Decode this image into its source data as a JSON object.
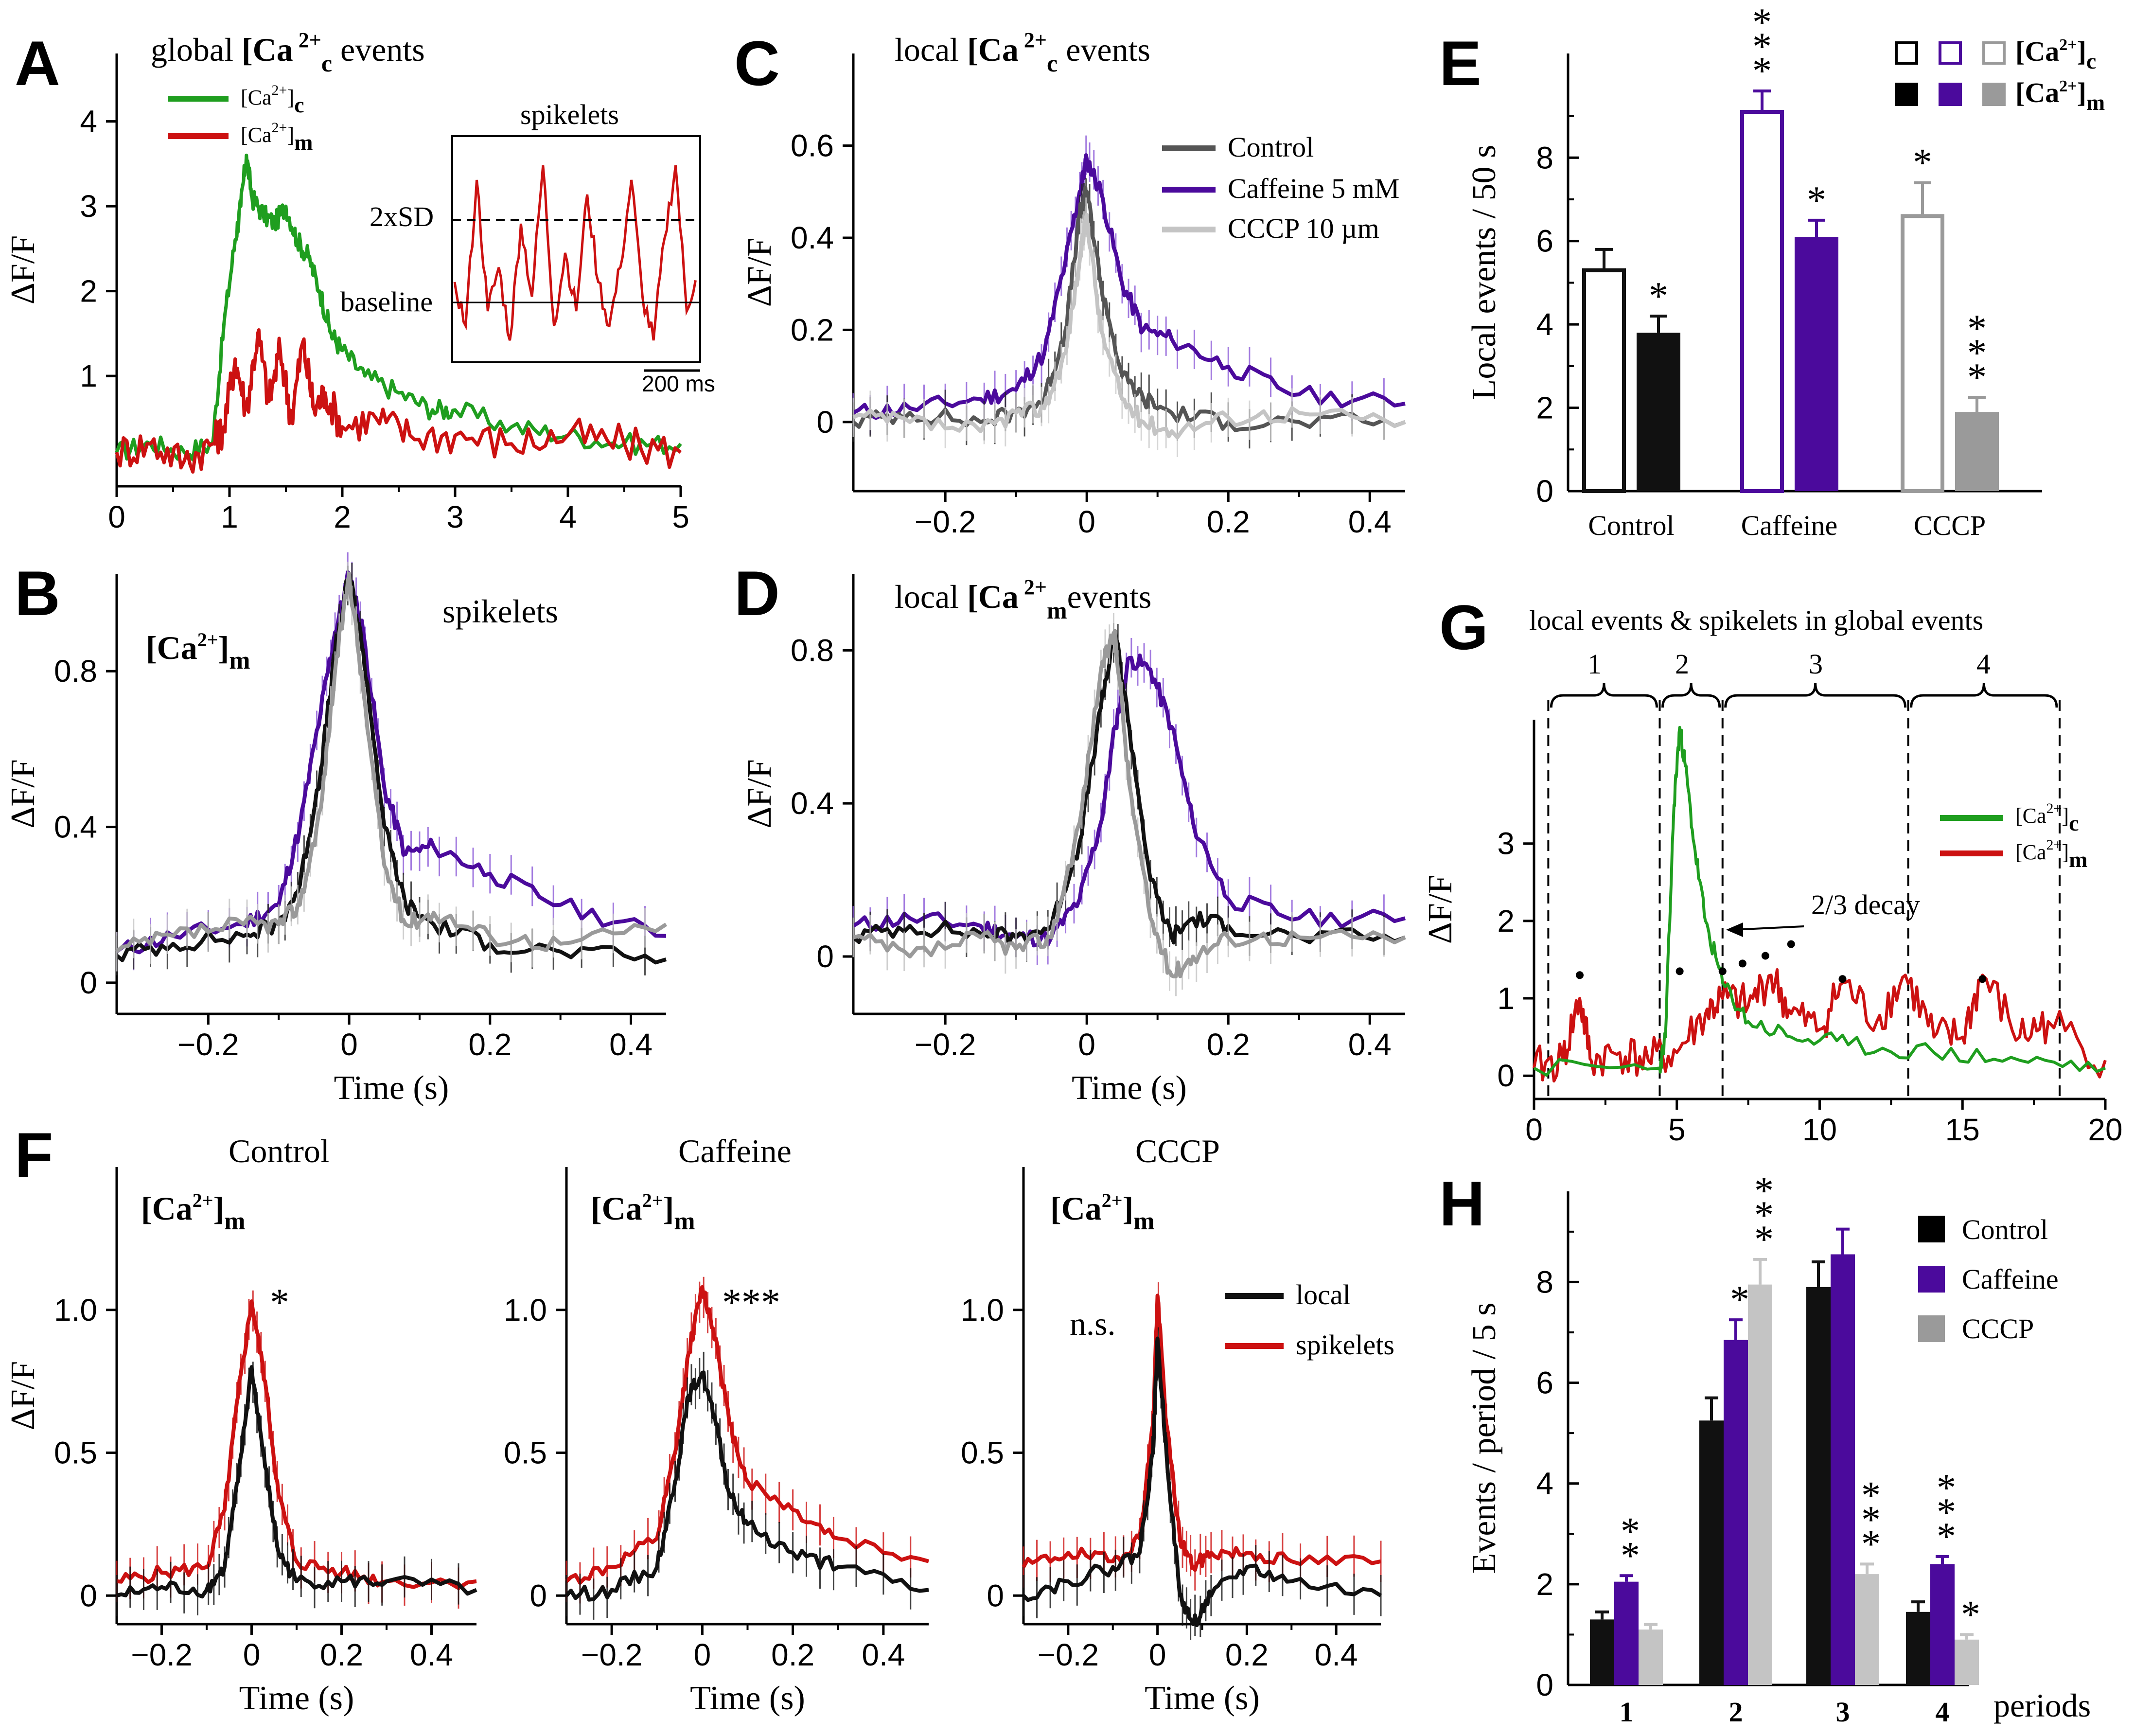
{
  "colors": {
    "green": "#1f9e1f",
    "red": "#cc1111",
    "purple": "#4b0a9c",
    "black": "#111111",
    "gray": "#9a9a9a",
    "lightgray": "#c4c4c4",
    "darkgray": "#555555",
    "purple_err": "#8b5ad8"
  },
  "panels": {
    "A": {
      "letter": "A",
      "title_pre": "global ",
      "title_ca": "[Ca",
      "title_sup": " 2+",
      "title_sub": "c",
      "title_post": " events",
      "legend": [
        {
          "label": "[Ca",
          "sup": "2+",
          "close": "]",
          "sub": "c",
          "color": "green"
        },
        {
          "label": "[Ca",
          "sup": "2+",
          "close": "]",
          "sub": "m",
          "color": "red"
        }
      ],
      "inset": {
        "title": "spikelets",
        "sd_label": "2xSD",
        "baseline_label": "baseline",
        "scalebar": "200 ms"
      }
    },
    "B": {
      "letter": "B",
      "title": "spikelets",
      "tag_pre": "[Ca",
      "tag_sup": "2+",
      "tag_close": "]",
      "tag_sub": "m"
    },
    "C": {
      "letter": "C",
      "title_pre": "local ",
      "title_ca": "[Ca",
      "title_sup": " 2+",
      "title_sub": "c",
      "title_post": " events",
      "legend": [
        {
          "label": "Control",
          "color": "darkgray"
        },
        {
          "label": "Caffeine 5 mM",
          "color": "purple"
        },
        {
          "label": "CCCP 10 µm",
          "color": "lightgray"
        }
      ]
    },
    "D": {
      "letter": "D",
      "title_pre": "local ",
      "title_ca": "[Ca",
      "title_sup": " 2+",
      "title_sub": "m",
      "title_post": "events"
    },
    "E": {
      "letter": "E",
      "legend": [
        {
          "label": "[Ca",
          "sup": "2+",
          "close": "]",
          "sub": "c"
        },
        {
          "label": "[Ca",
          "sup": "2+",
          "close": "]",
          "sub": "m"
        }
      ]
    },
    "F": {
      "letter": "F",
      "subtitles": [
        "Control",
        "Caffeine",
        "CCCP"
      ],
      "tag_pre": "[Ca",
      "tag_sup": "2+",
      "tag_close": "]",
      "tag_sub": "m",
      "sig": [
        "*",
        "***",
        "n.s."
      ],
      "legend": [
        {
          "label": "local",
          "color": "black"
        },
        {
          "label": "spikelets",
          "color": "red"
        }
      ]
    },
    "G": {
      "letter": "G",
      "title": "local events & spikelets in global events",
      "periods": [
        "1",
        "2",
        "3",
        "4"
      ],
      "annotation": "2/3 decay",
      "legend": [
        {
          "label": "[Ca",
          "sup": "2+",
          "close": "]",
          "sub": "c",
          "color": "green"
        },
        {
          "label": "[Ca",
          "sup": "2+",
          "close": "]",
          "sub": "m",
          "color": "red"
        }
      ]
    },
    "H": {
      "letter": "H",
      "xlabel_extra": "periods",
      "legend": [
        {
          "label": "Control",
          "color": "black"
        },
        {
          "label": "Caffeine",
          "color": "purple"
        },
        {
          "label": "CCCP",
          "color": "lightgray"
        }
      ]
    }
  },
  "chart_data": [
    {
      "id": "A",
      "type": "line",
      "title": "global [Ca 2+]c events",
      "xlabel": "",
      "ylabel": "ΔF/F",
      "xlim": [
        0,
        5
      ],
      "ylim": [
        -0.3,
        4.8
      ],
      "xticks": [
        "0",
        "1",
        "2",
        "3",
        "4",
        "5"
      ],
      "yticks": [
        "1",
        "2",
        "3",
        "4"
      ],
      "series": [
        {
          "name": "[Ca2+]c",
          "color": "green",
          "x": [
            0,
            0.3,
            0.6,
            0.85,
            0.95,
            1.05,
            1.1,
            1.15,
            1.2,
            1.3,
            1.4,
            1.5,
            1.6,
            1.7,
            1.8,
            1.9,
            2.0,
            2.2,
            2.5,
            2.8,
            3.0,
            3.5,
            4.0,
            4.5,
            5.0
          ],
          "y": [
            0.1,
            0.2,
            0.1,
            0.2,
            1.6,
            2.6,
            3.0,
            3.6,
            3.1,
            2.9,
            2.8,
            3.0,
            2.6,
            2.4,
            2.0,
            1.5,
            1.3,
            1.0,
            0.8,
            0.6,
            0.6,
            0.4,
            0.3,
            0.2,
            0.2
          ]
        },
        {
          "name": "[Ca2+]m",
          "color": "red",
          "x": [
            0,
            0.3,
            0.6,
            0.85,
            0.95,
            1.05,
            1.15,
            1.25,
            1.35,
            1.45,
            1.55,
            1.65,
            1.75,
            1.85,
            2.0,
            2.3,
            2.6,
            3.0,
            3.5,
            4.0,
            4.5,
            5.0
          ],
          "y": [
            0.1,
            0.2,
            0.0,
            0.2,
            0.4,
            1.2,
            0.6,
            1.5,
            0.7,
            1.3,
            0.5,
            1.4,
            0.6,
            0.8,
            0.4,
            0.5,
            0.3,
            0.3,
            0.2,
            0.3,
            0.2,
            0.1
          ]
        }
      ],
      "inset": {
        "series": [
          {
            "name": "spikelets",
            "color": "red",
            "y": [
              0.5,
              0.2,
              1.2,
              0.3,
              0.6,
              0.1,
              0.9,
              0.4,
              1.3,
              0.2,
              0.7,
              0.3,
              1.1,
              0.5,
              0.2,
              0.6,
              1.2,
              0.4,
              0.1,
              0.8,
              1.3,
              0.3,
              0.6
            ]
          }
        ]
      }
    },
    {
      "id": "B",
      "type": "line",
      "xlabel": "Time (s)",
      "ylabel": "ΔF/F",
      "xlim": [
        -0.33,
        0.45
      ],
      "ylim": [
        -0.08,
        1.05
      ],
      "xticks": [
        "-0.2",
        "0",
        "0.2",
        "0.4"
      ],
      "yticks": [
        "0",
        "0.4",
        "0.8"
      ],
      "x": [
        -0.33,
        -0.25,
        -0.15,
        -0.1,
        -0.07,
        -0.04,
        -0.02,
        0,
        0.02,
        0.05,
        0.08,
        0.12,
        0.2,
        0.3,
        0.45
      ],
      "series": [
        {
          "name": "Caffeine",
          "color": "purple",
          "y": [
            0.08,
            0.12,
            0.15,
            0.2,
            0.4,
            0.7,
            0.9,
            1.05,
            0.9,
            0.5,
            0.33,
            0.35,
            0.28,
            0.2,
            0.12
          ]
        },
        {
          "name": "Control",
          "color": "black",
          "y": [
            0.07,
            0.1,
            0.12,
            0.15,
            0.25,
            0.55,
            0.85,
            1.05,
            0.85,
            0.4,
            0.2,
            0.15,
            0.1,
            0.08,
            0.06
          ]
        },
        {
          "name": "CCCP",
          "color": "gray",
          "y": [
            0.08,
            0.12,
            0.15,
            0.15,
            0.2,
            0.45,
            0.8,
            1.05,
            0.75,
            0.3,
            0.15,
            0.18,
            0.12,
            0.1,
            0.15
          ]
        }
      ]
    },
    {
      "id": "C",
      "type": "line",
      "title": "local [Ca 2+]c events",
      "xlabel": "",
      "ylabel": "ΔF/F",
      "xlim": [
        -0.33,
        0.45
      ],
      "ylim": [
        -0.15,
        0.8
      ],
      "xticks": [
        "-0.2",
        "0",
        "0.2",
        "0.4"
      ],
      "yticks": [
        "0",
        "0.2",
        "0.4",
        "0.6"
      ],
      "x": [
        -0.33,
        -0.25,
        -0.15,
        -0.1,
        -0.06,
        -0.03,
        -0.01,
        0,
        0.02,
        0.05,
        0.08,
        0.12,
        0.2,
        0.3,
        0.45
      ],
      "series": [
        {
          "name": "Caffeine 5 mM",
          "color": "purple",
          "y": [
            0.02,
            0.03,
            0.05,
            0.07,
            0.15,
            0.35,
            0.5,
            0.57,
            0.5,
            0.3,
            0.2,
            0.18,
            0.12,
            0.06,
            0.04
          ]
        },
        {
          "name": "Control",
          "color": "darkgray",
          "y": [
            0.0,
            0.02,
            0.0,
            0.02,
            0.05,
            0.2,
            0.45,
            0.5,
            0.3,
            0.1,
            0.05,
            0.02,
            0.0,
            0.0,
            0.0
          ]
        },
        {
          "name": "CCCP 10 µm",
          "color": "lightgray",
          "y": [
            0.01,
            0.0,
            -0.02,
            0.02,
            0.03,
            0.15,
            0.35,
            0.45,
            0.2,
            0.05,
            0.0,
            -0.02,
            0.01,
            0.02,
            0.0
          ]
        }
      ]
    },
    {
      "id": "D",
      "type": "line",
      "title": "local [Ca 2+]m events",
      "xlabel": "Time (s)",
      "ylabel": "ΔF/F",
      "xlim": [
        -0.33,
        0.45
      ],
      "ylim": [
        -0.15,
        1.0
      ],
      "xticks": [
        "-0.2",
        "0",
        "0.2",
        "0.4"
      ],
      "yticks": [
        "0",
        "0.4",
        "0.8"
      ],
      "x": [
        -0.33,
        -0.25,
        -0.15,
        -0.1,
        -0.05,
        -0.01,
        0.02,
        0.04,
        0.06,
        0.09,
        0.12,
        0.15,
        0.2,
        0.3,
        0.45
      ],
      "series": [
        {
          "name": "Caffeine",
          "color": "purple",
          "y": [
            0.08,
            0.1,
            0.08,
            0.05,
            0.05,
            0.15,
            0.35,
            0.6,
            0.78,
            0.75,
            0.6,
            0.35,
            0.15,
            0.1,
            0.1
          ]
        },
        {
          "name": "Control",
          "color": "black",
          "y": [
            0.05,
            0.08,
            0.06,
            0.05,
            0.08,
            0.3,
            0.65,
            0.85,
            0.6,
            0.2,
            0.05,
            0.1,
            0.08,
            0.05,
            0.05
          ]
        },
        {
          "name": "CCCP",
          "color": "gray",
          "y": [
            0.05,
            0.0,
            0.05,
            0.02,
            0.05,
            0.35,
            0.75,
            0.85,
            0.45,
            0.1,
            -0.05,
            0.0,
            0.05,
            0.05,
            0.05
          ]
        }
      ]
    },
    {
      "id": "E",
      "type": "bar",
      "ylabel": "Local events / 50 s",
      "ylim": [
        0,
        10.5
      ],
      "yticks": [
        "0",
        "2",
        "4",
        "6",
        "8"
      ],
      "categories": [
        "Control",
        "Caffeine",
        "CCCP"
      ],
      "series": [
        {
          "name": "[Ca2+]c",
          "fill": "open",
          "values": [
            5.3,
            9.1,
            6.6
          ],
          "err": [
            0.5,
            0.5,
            0.8
          ],
          "sig": [
            "",
            "***",
            "*"
          ]
        },
        {
          "name": "[Ca2+]m",
          "fill": "solid",
          "values": [
            3.8,
            6.1,
            1.9
          ],
          "err": [
            0.4,
            0.4,
            0.35
          ],
          "sig": [
            "*",
            "*",
            "***"
          ]
        }
      ]
    },
    {
      "id": "F-Control",
      "type": "line",
      "title": "Control",
      "xlabel": "Time (s)",
      "ylabel": "ΔF/F",
      "xlim": [
        -0.3,
        0.5
      ],
      "ylim": [
        -0.1,
        1.5
      ],
      "xticks": [
        "-0.2",
        "0",
        "0.2",
        "0.4"
      ],
      "yticks": [
        "0",
        "0.5",
        "1.0"
      ],
      "x": [
        -0.3,
        -0.2,
        -0.1,
        -0.06,
        -0.03,
        0,
        0.03,
        0.06,
        0.1,
        0.2,
        0.3,
        0.5
      ],
      "series": [
        {
          "name": "spikelets",
          "color": "red",
          "y": [
            0.05,
            0.08,
            0.1,
            0.3,
            0.7,
            1.03,
            0.75,
            0.35,
            0.12,
            0.08,
            0.05,
            0.05
          ]
        },
        {
          "name": "local",
          "color": "black",
          "y": [
            0.0,
            0.03,
            0.02,
            0.1,
            0.4,
            0.8,
            0.45,
            0.15,
            0.05,
            0.05,
            0.05,
            0.02
          ]
        }
      ]
    },
    {
      "id": "F-Caffeine",
      "type": "line",
      "title": "Caffeine",
      "xlabel": "Time (s)",
      "ylabel": "",
      "xlim": [
        -0.3,
        0.5
      ],
      "ylim": [
        -0.1,
        1.5
      ],
      "xticks": [
        "-0.2",
        "0",
        "0.2",
        "0.4"
      ],
      "yticks": [
        "0",
        "0.5",
        "1.0"
      ],
      "x": [
        -0.3,
        -0.2,
        -0.1,
        -0.06,
        -0.03,
        0,
        0.03,
        0.06,
        0.1,
        0.2,
        0.3,
        0.5
      ],
      "series": [
        {
          "name": "spikelets",
          "color": "red",
          "y": [
            0.05,
            0.1,
            0.2,
            0.5,
            0.85,
            1.08,
            0.9,
            0.6,
            0.4,
            0.3,
            0.2,
            0.12
          ]
        },
        {
          "name": "local",
          "color": "black",
          "y": [
            0.0,
            0.02,
            0.1,
            0.4,
            0.7,
            0.78,
            0.6,
            0.35,
            0.25,
            0.15,
            0.1,
            0.02
          ]
        }
      ]
    },
    {
      "id": "F-CCCP",
      "type": "line",
      "title": "CCCP",
      "xlabel": "Time (s)",
      "ylabel": "",
      "xlim": [
        -0.3,
        0.5
      ],
      "ylim": [
        -0.1,
        1.5
      ],
      "xticks": [
        "-0.2",
        "0",
        "0.2",
        "0.4"
      ],
      "yticks": [
        "0",
        "0.5",
        "1.0"
      ],
      "x": [
        -0.3,
        -0.2,
        -0.1,
        -0.04,
        -0.01,
        0,
        0.02,
        0.05,
        0.08,
        0.12,
        0.2,
        0.3,
        0.5
      ],
      "series": [
        {
          "name": "spikelets",
          "color": "red",
          "y": [
            0.1,
            0.15,
            0.12,
            0.2,
            0.6,
            1.05,
            0.6,
            0.2,
            0.1,
            0.15,
            0.15,
            0.12,
            0.12
          ]
        },
        {
          "name": "local",
          "color": "black",
          "y": [
            0.0,
            0.05,
            0.1,
            0.15,
            0.5,
            0.9,
            0.5,
            0.0,
            -0.1,
            0.0,
            0.1,
            0.05,
            0.0
          ]
        }
      ]
    },
    {
      "id": "G",
      "type": "line",
      "title": "local events & spikelets in global events",
      "xlabel": "",
      "ylabel": "ΔF/F",
      "xlim": [
        0,
        20
      ],
      "ylim": [
        -0.3,
        4.6
      ],
      "xticks": [
        "0",
        "5",
        "10",
        "15",
        "20"
      ],
      "yticks": [
        "0",
        "1",
        "2",
        "3"
      ],
      "period_bounds": [
        0.5,
        4.4,
        6.6,
        13.1,
        18.4
      ],
      "series": [
        {
          "name": "[Ca2+]c",
          "color": "green",
          "x": [
            0,
            4.4,
            4.6,
            4.9,
            5.1,
            5.3,
            5.6,
            6.0,
            6.6,
            7.5,
            9,
            11,
            14,
            17,
            20
          ],
          "y": [
            0.1,
            0.1,
            0.5,
            3.5,
            4.5,
            4.0,
            3.0,
            2.0,
            1.2,
            0.7,
            0.5,
            0.4,
            0.3,
            0.2,
            0.1
          ]
        },
        {
          "name": "[Ca2+]m",
          "color": "red",
          "x": [
            0,
            1,
            1.6,
            2,
            3,
            4,
            5,
            6,
            6.6,
            7.5,
            8.3,
            9,
            10,
            10.8,
            12,
            13,
            14,
            15,
            15.7,
            17,
            18,
            20
          ],
          "y": [
            0.1,
            0.2,
            1.0,
            0.2,
            0.3,
            0.2,
            0.3,
            0.8,
            1.0,
            0.9,
            1.3,
            0.8,
            0.6,
            1.2,
            0.7,
            1.3,
            0.5,
            0.5,
            1.3,
            0.5,
            0.7,
            0.2
          ]
        }
      ]
    },
    {
      "id": "H",
      "type": "bar",
      "ylabel": "Events / period / 5 s",
      "ylim": [
        0,
        9.8
      ],
      "yticks": [
        "0",
        "2",
        "4",
        "6",
        "8"
      ],
      "categories": [
        "1",
        "2",
        "3",
        "4"
      ],
      "series": [
        {
          "name": "Control",
          "color": "black",
          "values": [
            1.3,
            5.25,
            7.9,
            1.45
          ],
          "err": [
            0.15,
            0.45,
            0.5,
            0.2
          ],
          "sig": [
            "",
            "",
            "",
            ""
          ]
        },
        {
          "name": "Caffeine",
          "color": "purple",
          "values": [
            2.05,
            6.85,
            8.55,
            2.4
          ],
          "err": [
            0.12,
            0.4,
            0.5,
            0.15
          ],
          "sig": [
            "**",
            "*",
            "",
            "***"
          ]
        },
        {
          "name": "CCCP",
          "color": "lightgray",
          "values": [
            1.1,
            7.95,
            2.2,
            0.9
          ],
          "err": [
            0.1,
            0.5,
            0.2,
            0.1
          ],
          "sig": [
            "",
            "***",
            "***",
            "*"
          ]
        }
      ]
    }
  ]
}
